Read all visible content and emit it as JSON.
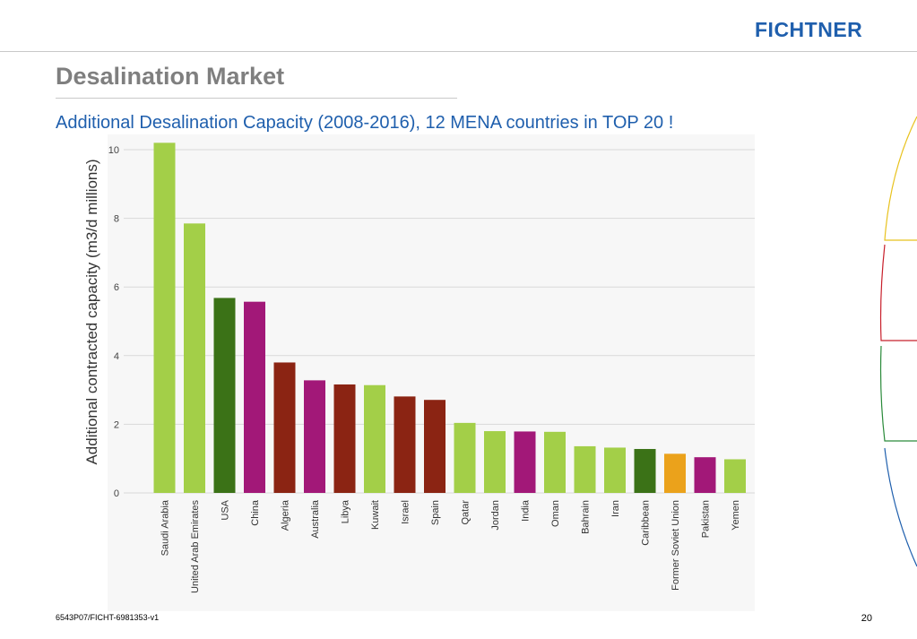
{
  "header": {
    "logo_text": "FICHTNER",
    "title": "Desalination Market",
    "subtitle": "Additional Desalination Capacity (2008-2016), 12 MENA countries in TOP 20 !"
  },
  "footer": {
    "doc_id": "6543P07/FICHT-6981353-v1",
    "page_number": "20"
  },
  "colors": {
    "brand_blue": "#1f5fad",
    "light_green": "#a3cf48",
    "dark_green": "#3b7217",
    "magenta": "#a21878",
    "dark_red": "#8b2413",
    "orange": "#eba21b"
  },
  "chart_data": {
    "type": "bar",
    "title": "",
    "xlabel": "",
    "ylabel": "Additional contracted capacity (m3/d millions)",
    "ylim": [
      0,
      10
    ],
    "yticks": [
      0,
      2,
      4,
      6,
      8,
      10
    ],
    "grid": true,
    "categories": [
      "Saudi Arabia",
      "United Arab Emirates",
      "USA",
      "China",
      "Algeria",
      "Australia",
      "Libya",
      "Kuwait",
      "Israel",
      "Spain",
      "Qatar",
      "Jordan",
      "India",
      "Oman",
      "Bahrain",
      "Iran",
      "Caribbean",
      "Former Soviet Union",
      "Pakistan",
      "Yemen"
    ],
    "values": [
      10.2,
      7.85,
      5.68,
      5.57,
      3.8,
      3.28,
      3.16,
      3.14,
      2.81,
      2.71,
      2.04,
      1.8,
      1.79,
      1.78,
      1.36,
      1.32,
      1.28,
      1.14,
      1.04,
      0.98
    ],
    "bar_colors": [
      "#a3cf48",
      "#a3cf48",
      "#3b7217",
      "#a21878",
      "#8b2413",
      "#a21878",
      "#8b2413",
      "#a3cf48",
      "#8b2413",
      "#8b2413",
      "#a3cf48",
      "#a3cf48",
      "#a21878",
      "#a3cf48",
      "#a3cf48",
      "#a3cf48",
      "#3b7217",
      "#eba21b",
      "#a21878",
      "#a3cf48"
    ]
  }
}
